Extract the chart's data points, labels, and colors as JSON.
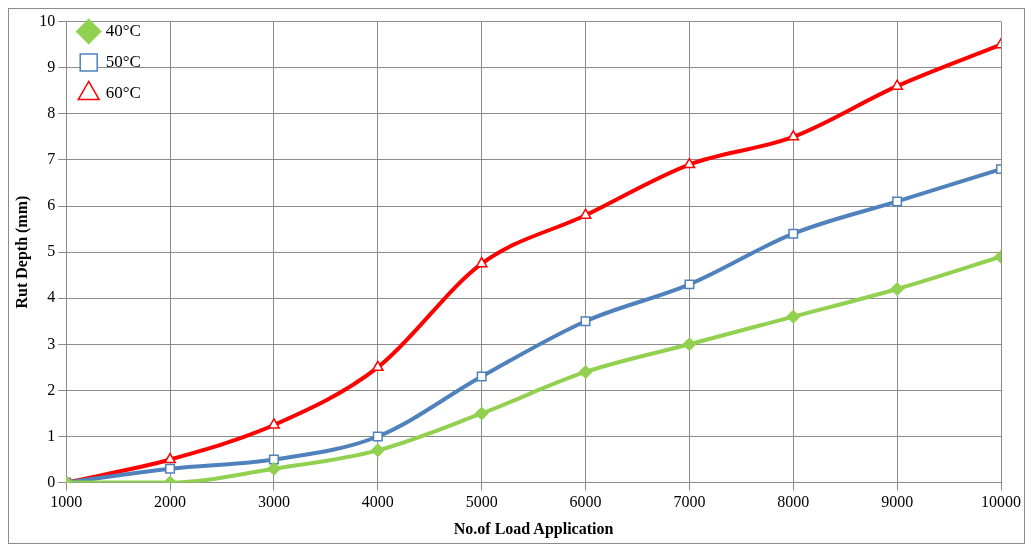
{
  "chart_data": {
    "type": "line",
    "xlabel": "No.of Load Application",
    "ylabel": "Rut Depth (mm)",
    "x": [
      1000,
      2000,
      3000,
      4000,
      5000,
      6000,
      7000,
      8000,
      9000,
      10000
    ],
    "xlim": [
      1000,
      10000
    ],
    "xticks": [
      1000,
      2000,
      3000,
      4000,
      5000,
      6000,
      7000,
      8000,
      9000,
      10000
    ],
    "ylim": [
      0,
      10
    ],
    "yticks": [
      0,
      1,
      2,
      3,
      4,
      5,
      6,
      7,
      8,
      9,
      10
    ],
    "grid": true,
    "legend": "top left",
    "series": [
      {
        "name": "40°C",
        "color": "#92d050",
        "marker": "diamond",
        "values": [
          0,
          0,
          0.3,
          0.7,
          1.5,
          2.4,
          3.0,
          3.6,
          4.2,
          4.9
        ]
      },
      {
        "name": "50°C",
        "color": "#4f81bd",
        "marker": "square",
        "values": [
          0,
          0.3,
          0.5,
          1.0,
          2.3,
          3.5,
          4.3,
          5.4,
          6.1,
          6.8
        ]
      },
      {
        "name": "60°C",
        "color": "#ff0000",
        "marker": "triangle",
        "values": [
          0,
          0.5,
          1.25,
          2.5,
          4.75,
          5.8,
          6.9,
          7.5,
          8.6,
          9.5
        ]
      }
    ]
  }
}
